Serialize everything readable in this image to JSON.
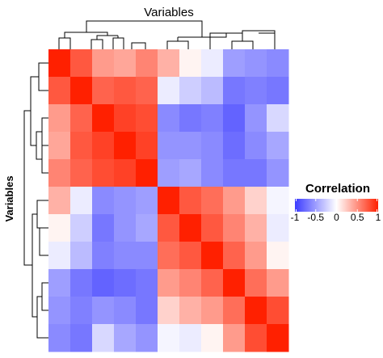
{
  "chart_data": {
    "type": "heatmap",
    "title": "Variables",
    "ylabel": "Variables",
    "legend": {
      "title": "Correlation",
      "placement": "right",
      "ticks": [
        "-1",
        "-0.5",
        "0",
        "0.5",
        "1"
      ],
      "tick_values": [
        -1,
        -0.5,
        0,
        0.5,
        1
      ],
      "range": [
        -1,
        1
      ]
    },
    "colors": {
      "low": "#3c3cff",
      "mid": "#ffffff",
      "high": "#ff2000"
    },
    "dendrogram": {
      "rows": true,
      "cols": true
    },
    "matrix": [
      [
        1.0,
        0.75,
        0.45,
        0.4,
        0.55,
        0.35,
        0.05,
        -0.1,
        -0.5,
        -0.55,
        -0.6
      ],
      [
        0.75,
        1.0,
        0.7,
        0.75,
        0.7,
        -0.1,
        -0.25,
        -0.35,
        -0.7,
        -0.65,
        -0.7
      ],
      [
        0.45,
        0.7,
        1.0,
        0.85,
        0.8,
        -0.6,
        -0.7,
        -0.65,
        -0.8,
        -0.55,
        -0.2
      ],
      [
        0.4,
        0.75,
        0.85,
        1.0,
        0.85,
        -0.55,
        -0.55,
        -0.6,
        -0.75,
        -0.6,
        -0.45
      ],
      [
        0.55,
        0.7,
        0.8,
        0.85,
        1.0,
        -0.5,
        -0.45,
        -0.6,
        -0.7,
        -0.7,
        -0.55
      ],
      [
        0.35,
        -0.1,
        -0.6,
        -0.55,
        -0.5,
        1.0,
        0.75,
        0.65,
        0.45,
        0.2,
        -0.05
      ],
      [
        0.05,
        -0.25,
        -0.7,
        -0.55,
        -0.45,
        0.75,
        1.0,
        0.75,
        0.55,
        0.35,
        -0.1
      ],
      [
        -0.1,
        -0.35,
        -0.65,
        -0.6,
        -0.6,
        0.65,
        0.75,
        1.0,
        0.7,
        0.45,
        0.05
      ],
      [
        -0.5,
        -0.7,
        -0.8,
        -0.75,
        -0.7,
        0.45,
        0.55,
        0.7,
        1.0,
        0.65,
        0.45
      ],
      [
        -0.55,
        -0.65,
        -0.55,
        -0.6,
        -0.7,
        0.2,
        0.35,
        0.45,
        0.65,
        1.0,
        0.8
      ],
      [
        -0.6,
        -0.7,
        -0.2,
        -0.45,
        -0.55,
        -0.05,
        -0.1,
        0.05,
        0.45,
        0.8,
        1.0
      ]
    ]
  }
}
